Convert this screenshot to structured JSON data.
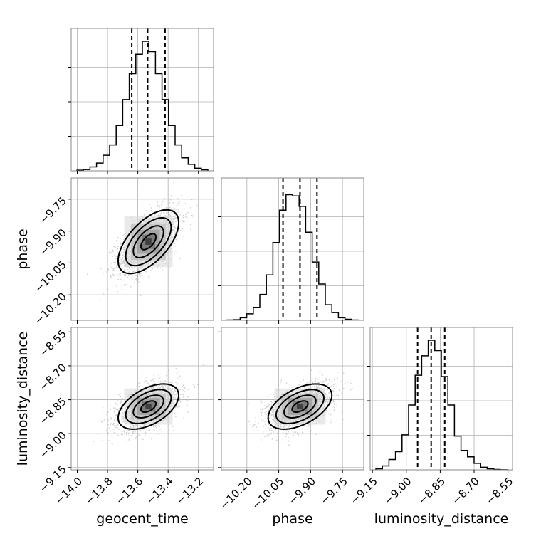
{
  "chart_data": {
    "type": "corner",
    "parameters": [
      "geocent_time",
      "phase",
      "luminosity_distance"
    ],
    "ranges": {
      "geocent_time": [
        -14.04,
        -13.1
      ],
      "phase": [
        -10.32,
        -9.65
      ],
      "luminosity_distance": [
        -9.16,
        -8.53
      ]
    },
    "ticks": {
      "geocent_time": [
        "−14.0",
        "−13.8",
        "−13.6",
        "−13.4",
        "−13.2"
      ],
      "phase": [
        "−10.20",
        "−10.05",
        "−9.90",
        "−9.75"
      ],
      "luminosity_distance": [
        "−9.15",
        "−9.00",
        "−8.85",
        "−8.70",
        "−8.55"
      ]
    },
    "tick_values": {
      "geocent_time": [
        -14.0,
        -13.8,
        -13.6,
        -13.4,
        -13.2
      ],
      "phase": [
        -10.2,
        -10.05,
        -9.9,
        -9.75
      ],
      "luminosity_distance": [
        -9.15,
        -9.0,
        -8.85,
        -8.7,
        -8.55
      ]
    },
    "quantiles": {
      "geocent_time": [
        -13.64,
        -13.535,
        -13.42
      ],
      "phase": [
        -10.03,
        -9.95,
        -9.87
      ],
      "luminosity_distance": [
        -8.95,
        -8.89,
        -8.83
      ]
    },
    "histograms": {
      "geocent_time": [
        0.005,
        0.01,
        0.03,
        0.06,
        0.12,
        0.2,
        0.35,
        0.55,
        0.75,
        0.9,
        1.0,
        0.92,
        0.75,
        0.55,
        0.35,
        0.2,
        0.1,
        0.05,
        0.02,
        0.008
      ],
      "phase": [
        0.003,
        0.005,
        0.02,
        0.05,
        0.1,
        0.2,
        0.35,
        0.6,
        0.85,
        0.97,
        0.96,
        0.88,
        0.68,
        0.45,
        0.28,
        0.12,
        0.06,
        0.02,
        0.008,
        0.003
      ],
      "luminosity_distance": [
        0.008,
        0.03,
        0.08,
        0.14,
        0.27,
        0.5,
        0.73,
        0.88,
        1.0,
        0.92,
        0.72,
        0.5,
        0.26,
        0.15,
        0.1,
        0.05,
        0.02,
        0.008,
        0.003,
        0.001
      ]
    },
    "pairs": [
      {
        "x": "geocent_time",
        "y": "phase",
        "mean": [
          -13.53,
          -9.95
        ],
        "sd": [
          0.1,
          0.075
        ],
        "corr": 0.6
      },
      {
        "x": "geocent_time",
        "y": "luminosity_distance",
        "mean": [
          -13.53,
          -8.88
        ],
        "sd": [
          0.1,
          0.05
        ],
        "corr": 0.5
      },
      {
        "x": "phase",
        "y": "luminosity_distance",
        "mean": [
          -9.95,
          -8.88
        ],
        "sd": [
          0.075,
          0.05
        ],
        "corr": 0.5
      }
    ],
    "grid": true,
    "title": ""
  }
}
